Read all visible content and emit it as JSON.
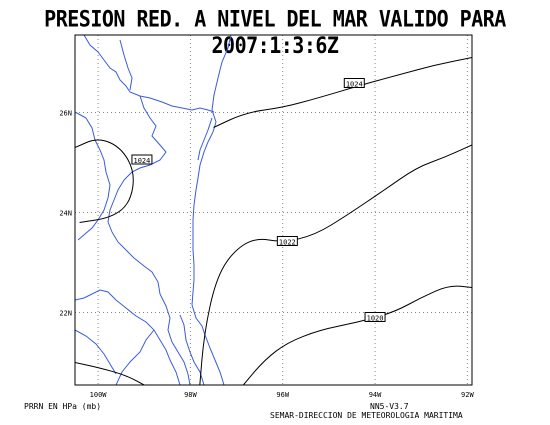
{
  "title": "PRESION RED. A NIVEL DEL MAR VALIDO PARA 2007:1:3:6Z",
  "lat_ticks": [
    {
      "lat": 26,
      "label": "26N"
    },
    {
      "lat": 24,
      "label": "24N"
    },
    {
      "lat": 22,
      "label": "22N"
    }
  ],
  "lon_ticks": [
    {
      "lon": -100,
      "label": "100W"
    },
    {
      "lon": -98,
      "label": "98W"
    },
    {
      "lon": -96,
      "label": "96W"
    },
    {
      "lon": -94,
      "label": "94W"
    },
    {
      "lon": -92,
      "label": "92W"
    }
  ],
  "isobars": [
    {
      "label": "1024",
      "points": [
        [
          -97.5,
          25.7
        ],
        [
          -96.8,
          26.0
        ],
        [
          -96.0,
          26.1
        ],
        [
          -95.2,
          26.3
        ],
        [
          -94.3,
          26.55
        ],
        [
          -93.5,
          26.75
        ],
        [
          -92.7,
          26.95
        ],
        [
          -91.9,
          27.1
        ]
      ],
      "label_at": [
        -94.45,
        26.58
      ]
    },
    {
      "label": "1022",
      "points": [
        [
          -97.8,
          20.5
        ],
        [
          -97.7,
          21.6
        ],
        [
          -97.45,
          22.65
        ],
        [
          -97.1,
          23.2
        ],
        [
          -96.6,
          23.5
        ],
        [
          -96.0,
          23.4
        ],
        [
          -95.3,
          23.55
        ],
        [
          -94.6,
          23.95
        ],
        [
          -93.8,
          24.45
        ],
        [
          -93.1,
          24.9
        ],
        [
          -92.5,
          25.1
        ],
        [
          -91.9,
          25.35
        ]
      ],
      "label_at": [
        -95.9,
        23.42
      ]
    },
    {
      "label": "1020",
      "points": [
        [
          -96.9,
          20.5
        ],
        [
          -96.4,
          21.05
        ],
        [
          -95.9,
          21.4
        ],
        [
          -95.2,
          21.65
        ],
        [
          -94.4,
          21.8
        ],
        [
          -93.6,
          22.0
        ],
        [
          -93.0,
          22.3
        ],
        [
          -92.4,
          22.55
        ],
        [
          -91.9,
          22.5
        ]
      ],
      "label_at": [
        -94.0,
        21.9
      ]
    },
    {
      "label": "1024",
      "points": [
        [
          -100.5,
          25.3
        ],
        [
          -100.0,
          25.5
        ],
        [
          -99.5,
          25.3
        ],
        [
          -99.2,
          24.8
        ],
        [
          -99.3,
          24.2
        ],
        [
          -99.7,
          23.9
        ],
        [
          -100.4,
          23.8
        ]
      ],
      "label_at": [
        -99.05,
        25.05
      ]
    },
    {
      "label": "",
      "points": [
        [
          -100.5,
          21.0
        ],
        [
          -100.0,
          20.9
        ],
        [
          -99.4,
          20.75
        ],
        [
          -98.9,
          20.5
        ]
      ],
      "label_at": null
    }
  ],
  "labels_footer": {
    "left": "PRRN EN HPa (mb)",
    "right_top": "NN5-V3.7",
    "right_bottom": "SEMAR-DIRECCION DE METEOROLOGIA MARITIMA"
  },
  "colors": {
    "coast": "#3b5bdb",
    "isobar": "#000000",
    "grid": "#888888"
  }
}
